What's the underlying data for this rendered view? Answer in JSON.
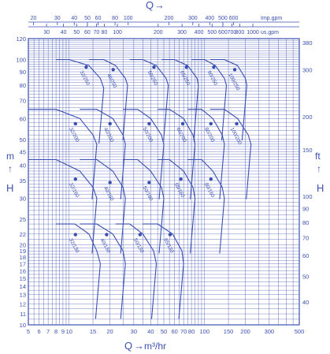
{
  "chart_data": {
    "type": "line",
    "title": "",
    "top_axis_label": "Q",
    "bottom_axis_label": "Q",
    "bottom_axis_unit": "m³/hr",
    "left_axis_label": "H",
    "left_axis_unit": "m",
    "right_axis_label": "H",
    "right_axis_unit": "ft",
    "x_scale": "log",
    "y_scale": "log",
    "xlim": [
      5,
      500
    ],
    "ylim": [
      10,
      120
    ],
    "grid": true,
    "x_ticks_bottom": [
      5,
      6,
      7,
      8,
      9,
      10,
      15,
      20,
      30,
      40,
      50,
      60,
      70,
      80,
      100,
      150,
      200,
      300,
      500
    ],
    "y_ticks_left": [
      10,
      11,
      12,
      13,
      14,
      15,
      16,
      17,
      18,
      19,
      20,
      22,
      25,
      30,
      35,
      40,
      45,
      50,
      60,
      70,
      80,
      90,
      100,
      120
    ],
    "imp_gpm_ticks": [
      20,
      30,
      40,
      50,
      60,
      80,
      100,
      200,
      300,
      400,
      500,
      600,
      1000,
      1600
    ],
    "imp_gpm_unit": "Imp.gpm",
    "us_gpm_ticks": [
      30,
      40,
      50,
      60,
      70,
      80,
      100,
      200,
      300,
      400,
      500,
      600,
      700,
      800,
      1000,
      2000
    ],
    "us_gpm_unit": "us.gpm",
    "ft_ticks": [
      40,
      50,
      60,
      70,
      80,
      90,
      100,
      150,
      200,
      300,
      380
    ],
    "series": [
      {
        "name": "32/250",
        "type": "envelope",
        "x": [
          8,
          10,
          14,
          17,
          18
        ],
        "y": [
          100,
          100,
          95,
          85,
          78
        ]
      },
      {
        "name": "40/250",
        "type": "envelope",
        "x": [
          14,
          18,
          22,
          26,
          27
        ],
        "y": [
          100,
          100,
          95,
          85,
          80
        ]
      },
      {
        "name": "50/250",
        "type": "envelope",
        "x": [
          28,
          35,
          44,
          52,
          54
        ],
        "y": [
          100,
          100,
          95,
          85,
          80
        ]
      },
      {
        "name": "65/250",
        "type": "envelope",
        "x": [
          48,
          60,
          75,
          88,
          90
        ],
        "y": [
          100,
          100,
          95,
          85,
          80
        ]
      },
      {
        "name": "80/250",
        "type": "envelope",
        "x": [
          80,
          100,
          120,
          140,
          145
        ],
        "y": [
          100,
          100,
          95,
          85,
          80
        ]
      },
      {
        "name": "100/250",
        "type": "envelope",
        "x": [
          110,
          140,
          175,
          200,
          205
        ],
        "y": [
          100,
          100,
          95,
          85,
          80
        ]
      },
      {
        "name": "32/200",
        "type": "envelope",
        "x": [
          5,
          8,
          12,
          15,
          16
        ],
        "y": [
          65,
          65,
          60,
          52,
          48
        ]
      },
      {
        "name": "40/200",
        "type": "envelope",
        "x": [
          12,
          16,
          21,
          25,
          26
        ],
        "y": [
          65,
          65,
          60,
          52,
          48
        ]
      },
      {
        "name": "50/200",
        "type": "envelope",
        "x": [
          25,
          32,
          40,
          48,
          50
        ],
        "y": [
          65,
          65,
          60,
          52,
          48
        ]
      },
      {
        "name": "65/200",
        "type": "envelope",
        "x": [
          45,
          55,
          70,
          82,
          85
        ],
        "y": [
          65,
          65,
          60,
          52,
          48
        ]
      },
      {
        "name": "80/200",
        "type": "envelope",
        "x": [
          75,
          95,
          115,
          135,
          140
        ],
        "y": [
          65,
          65,
          60,
          52,
          48
        ]
      },
      {
        "name": "100/200",
        "type": "envelope",
        "x": [
          110,
          140,
          175,
          210,
          220
        ],
        "y": [
          65,
          65,
          60,
          52,
          48
        ]
      },
      {
        "name": "32/160",
        "type": "envelope",
        "x": [
          5,
          8,
          12,
          15,
          16
        ],
        "y": [
          42,
          42,
          38,
          33,
          30
        ]
      },
      {
        "name": "40/160",
        "type": "envelope",
        "x": [
          12,
          16,
          21,
          25,
          26
        ],
        "y": [
          42,
          42,
          38,
          33,
          30
        ]
      },
      {
        "name": "50/160",
        "type": "envelope",
        "x": [
          25,
          32,
          40,
          48,
          50
        ],
        "y": [
          42,
          42,
          38,
          33,
          30
        ]
      },
      {
        "name": "65/160",
        "type": "envelope",
        "x": [
          45,
          55,
          70,
          82,
          85
        ],
        "y": [
          42,
          42,
          38,
          33,
          30
        ]
      },
      {
        "name": "80/160",
        "type": "envelope",
        "x": [
          75,
          95,
          115,
          135,
          140
        ],
        "y": [
          42,
          42,
          38,
          33,
          30
        ]
      },
      {
        "name": "32/130",
        "type": "envelope",
        "x": [
          8,
          11,
          14,
          16,
          17
        ],
        "y": [
          24,
          24,
          22,
          19,
          17
        ]
      },
      {
        "name": "40/130",
        "type": "envelope",
        "x": [
          12,
          16,
          21,
          25,
          26
        ],
        "y": [
          24,
          24,
          22,
          19,
          17
        ]
      },
      {
        "name": "50/130",
        "type": "envelope",
        "x": [
          22,
          28,
          35,
          42,
          44
        ],
        "y": [
          24,
          24,
          22,
          19,
          17
        ]
      },
      {
        "name": "65/130",
        "type": "envelope",
        "x": [
          35,
          45,
          58,
          68,
          70
        ],
        "y": [
          24,
          24,
          22,
          19,
          17
        ]
      }
    ],
    "labels": [
      {
        "text": "32/250",
        "x": 12,
        "y": 90
      },
      {
        "text": "40/250",
        "x": 19,
        "y": 88
      },
      {
        "text": "50/250",
        "x": 38,
        "y": 90
      },
      {
        "text": "65/250",
        "x": 66,
        "y": 90
      },
      {
        "text": "80/250",
        "x": 105,
        "y": 90
      },
      {
        "text": "100/250",
        "x": 150,
        "y": 88
      },
      {
        "text": "32/200",
        "x": 10,
        "y": 55
      },
      {
        "text": "40/200",
        "x": 18,
        "y": 55
      },
      {
        "text": "50/200",
        "x": 35,
        "y": 55
      },
      {
        "text": "65/200",
        "x": 62,
        "y": 55
      },
      {
        "text": "80/200",
        "x": 100,
        "y": 55
      },
      {
        "text": "100/200",
        "x": 155,
        "y": 55
      },
      {
        "text": "32/160",
        "x": 10,
        "y": 34
      },
      {
        "text": "40/160",
        "x": 18,
        "y": 33
      },
      {
        "text": "50/160",
        "x": 35,
        "y": 33
      },
      {
        "text": "65/160",
        "x": 60,
        "y": 34
      },
      {
        "text": "80/160",
        "x": 100,
        "y": 34
      },
      {
        "text": "32/130",
        "x": 10,
        "y": 21
      },
      {
        "text": "40/130",
        "x": 17,
        "y": 21
      },
      {
        "text": "50/130",
        "x": 30,
        "y": 21
      },
      {
        "text": "65/130",
        "x": 50,
        "y": 21
      }
    ]
  },
  "colors": {
    "ink": "#3b4fb0",
    "grid": "#3b4fb0",
    "background": "#ffffff"
  }
}
